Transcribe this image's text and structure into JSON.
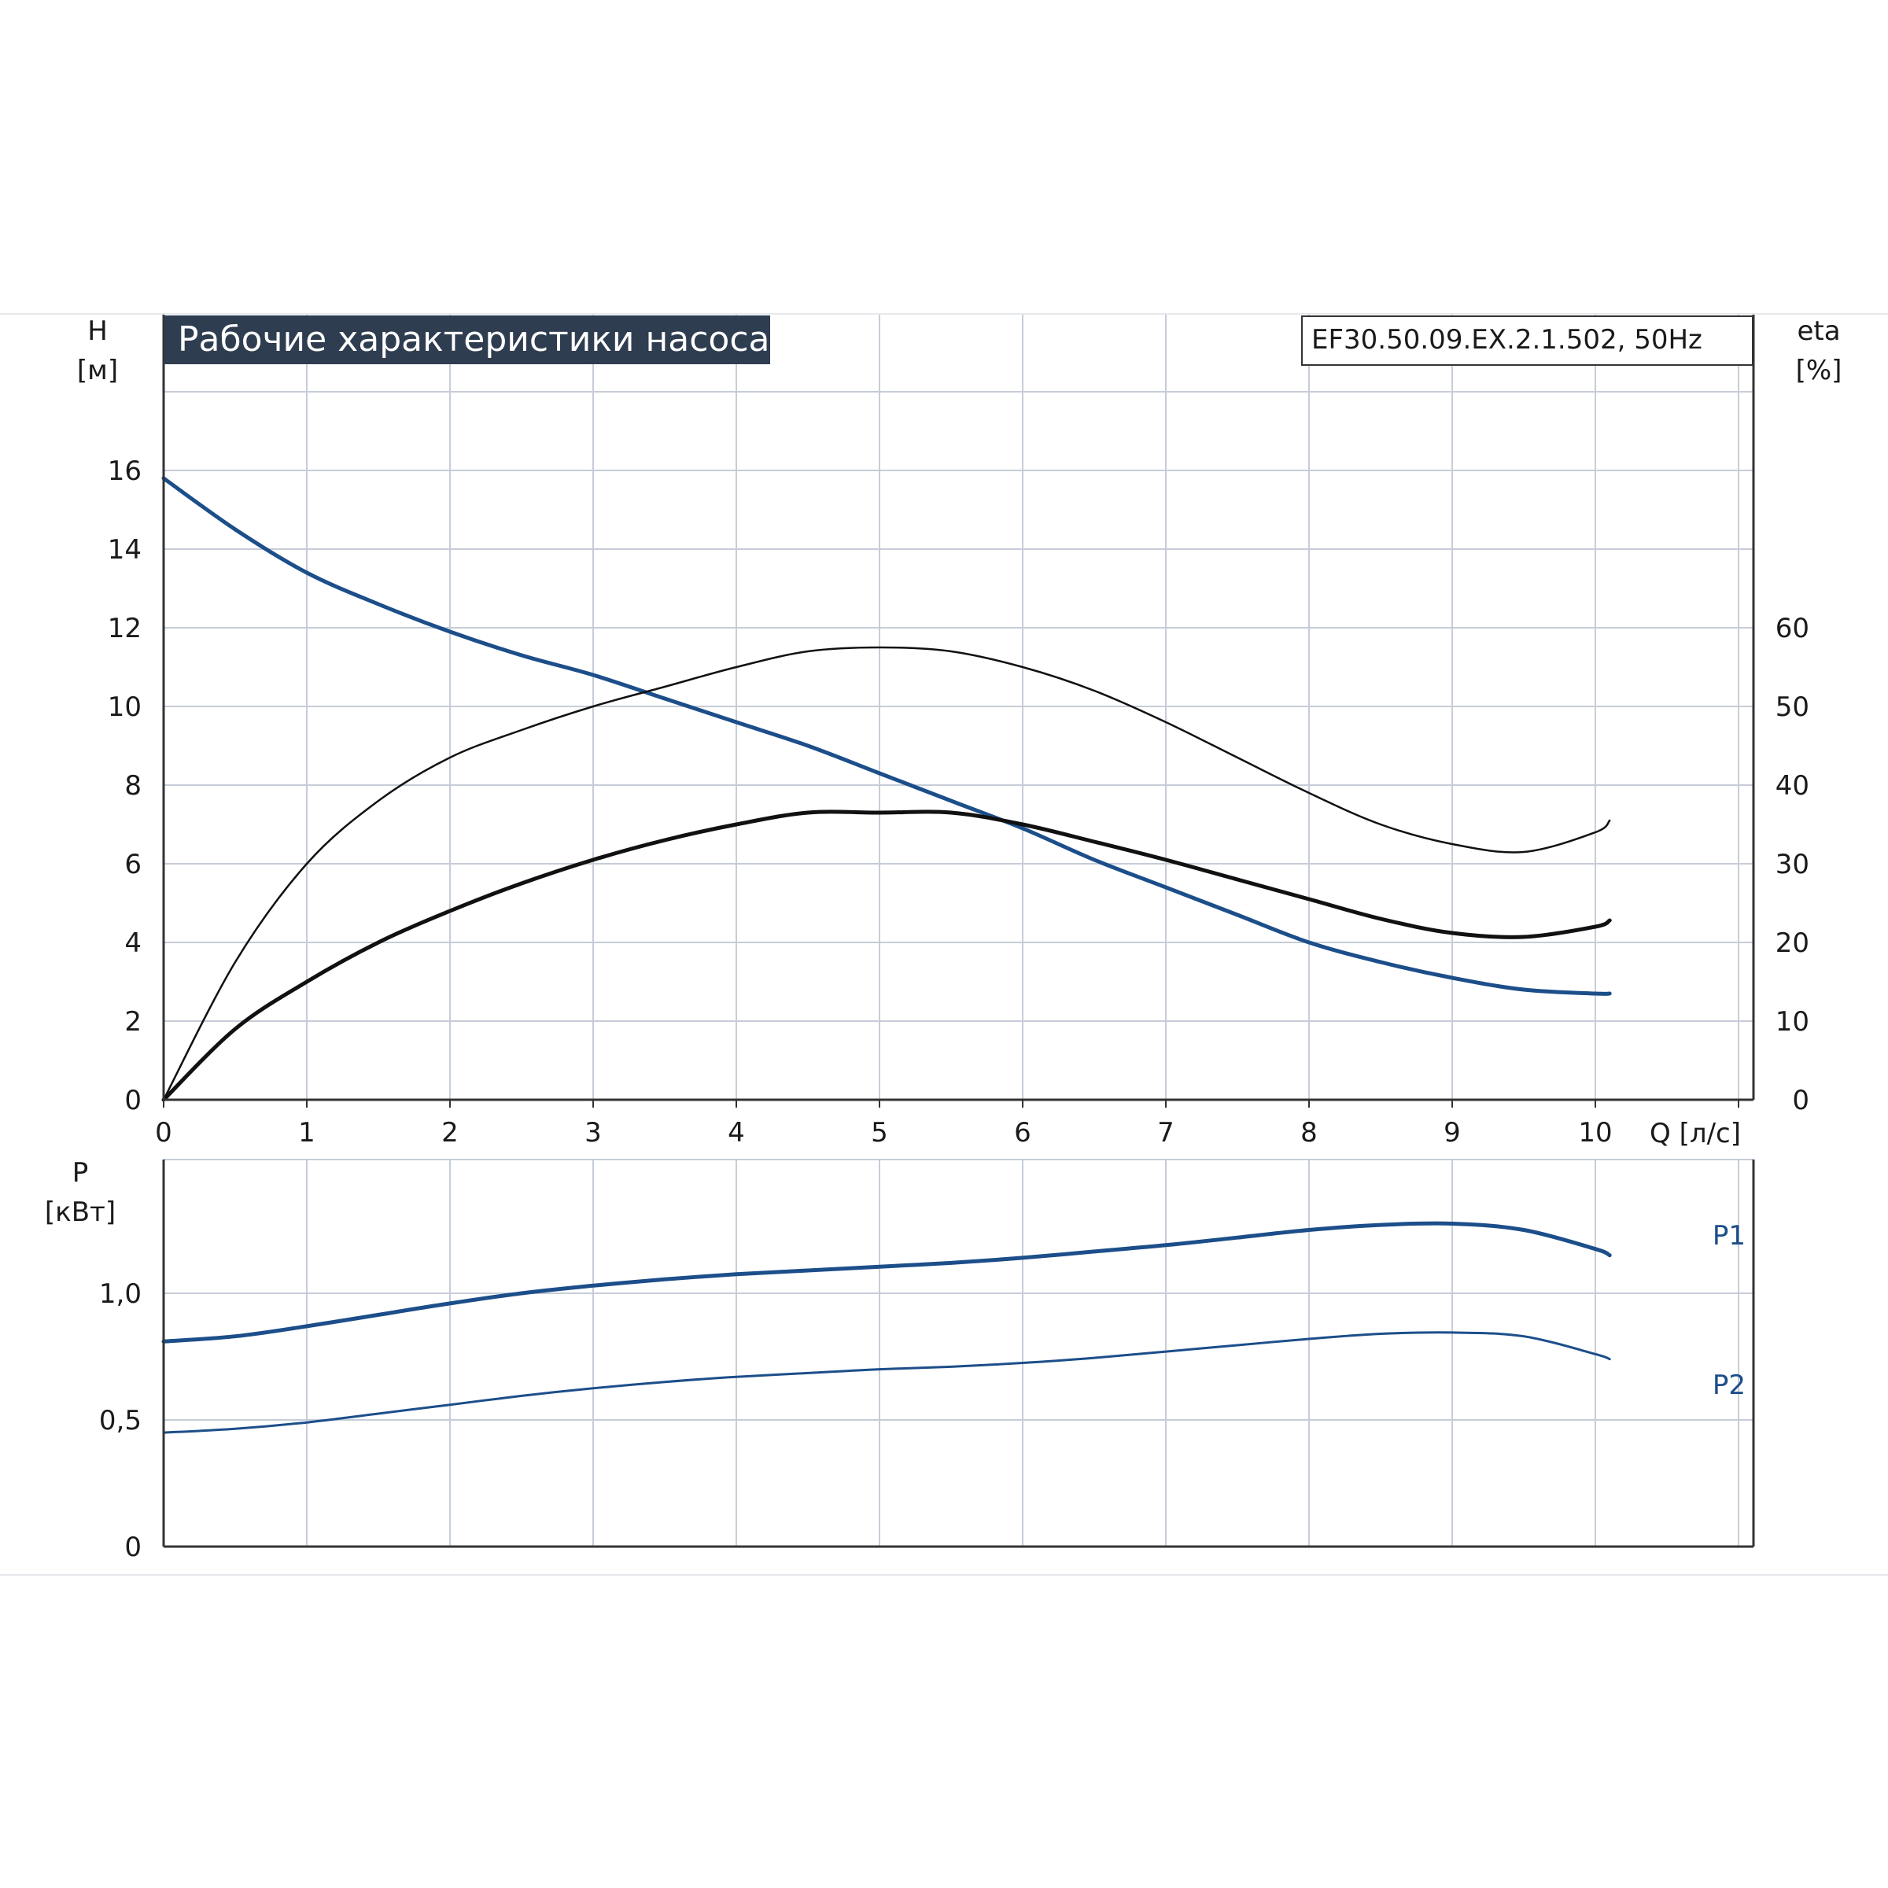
{
  "header": {
    "title": "Рабочие характеристики насоса",
    "model": "EF30.50.09.EX.2.1.502, 50Hz"
  },
  "colors": {
    "background": "#ffffff",
    "grid": "#c6cdd8",
    "axis": "#333333",
    "title_bg": "#2f3d50",
    "title_text": "#ffffff",
    "head_curve": "#1c4e8a",
    "power_curve": "#1c4e8a",
    "eta_curve": "#111111",
    "text": "#1a1a1a",
    "series_label": "#1c4e8a"
  },
  "chart_data": [
    {
      "id": "performance",
      "type": "line",
      "grid": true,
      "xlabel": "Q [л/с]",
      "ylabel": "H\n[м]",
      "y2label": "eta\n[%]",
      "xlim": [
        0,
        11
      ],
      "x_ticks": [
        "0",
        "1",
        "2",
        "3",
        "4",
        "5",
        "6",
        "7",
        "8",
        "9",
        "10"
      ],
      "ylim": [
        0,
        18
      ],
      "y_ticks": [
        "0",
        "2",
        "4",
        "6",
        "8",
        "10",
        "12",
        "14",
        "16"
      ],
      "y2lim": [
        0,
        90
      ],
      "y2_ticks": [
        "0",
        "10",
        "20",
        "30",
        "40",
        "50",
        "60"
      ],
      "series": [
        {
          "axis": "left",
          "style": "head",
          "x": [
            0,
            0.5,
            1,
            1.5,
            2,
            2.5,
            3,
            3.5,
            4,
            4.5,
            5,
            5.5,
            6,
            6.5,
            7,
            7.5,
            8,
            8.5,
            9,
            9.5,
            10,
            10.1
          ],
          "y": [
            15.8,
            14.5,
            13.4,
            12.6,
            11.9,
            11.3,
            10.8,
            10.2,
            9.6,
            9.0,
            8.3,
            7.6,
            6.9,
            6.1,
            5.4,
            4.7,
            4.0,
            3.5,
            3.1,
            2.8,
            2.7,
            2.7
          ]
        },
        {
          "axis": "right",
          "style": "eta_thin",
          "x": [
            0,
            0.5,
            1,
            1.5,
            2,
            2.5,
            3,
            3.5,
            4,
            4.5,
            5,
            5.5,
            6,
            6.5,
            7,
            7.5,
            8,
            8.5,
            9,
            9.5,
            10,
            10.1
          ],
          "y": [
            0,
            17.5,
            30,
            38,
            43.5,
            47,
            50,
            52.5,
            55,
            57,
            57.5,
            57,
            55,
            52,
            48,
            43.5,
            39,
            35,
            32.5,
            31.5,
            34,
            35.5
          ]
        },
        {
          "axis": "right",
          "style": "eta_thick",
          "x": [
            0,
            0.5,
            1,
            1.5,
            2,
            2.5,
            3,
            3.5,
            4,
            4.5,
            5,
            5.5,
            6,
            6.5,
            7,
            7.5,
            8,
            8.5,
            9,
            9.5,
            10,
            10.1
          ],
          "y": [
            0,
            9,
            15,
            20,
            24,
            27.5,
            30.5,
            33,
            35,
            36.5,
            36.5,
            36.5,
            35,
            32.8,
            30.5,
            28,
            25.5,
            23,
            21.2,
            20.7,
            22,
            22.8
          ]
        }
      ]
    },
    {
      "id": "power",
      "type": "line",
      "grid": true,
      "ylabel": "P\n[кВт]",
      "xlim": [
        0,
        11
      ],
      "ylim": [
        0,
        1.5
      ],
      "y_ticks": [
        "0",
        "0,5",
        "1,0"
      ],
      "series": [
        {
          "name": "P1",
          "style": "p1",
          "x": [
            0,
            0.5,
            1,
            1.5,
            2,
            2.5,
            3,
            3.5,
            4,
            4.5,
            5,
            5.5,
            6,
            6.5,
            7,
            7.5,
            8,
            8.5,
            9,
            9.5,
            10,
            10.1
          ],
          "y": [
            0.81,
            0.83,
            0.87,
            0.915,
            0.96,
            1.0,
            1.03,
            1.055,
            1.075,
            1.09,
            1.105,
            1.12,
            1.14,
            1.165,
            1.19,
            1.22,
            1.25,
            1.27,
            1.275,
            1.25,
            1.175,
            1.15
          ]
        },
        {
          "name": "P2",
          "style": "p2",
          "x": [
            0,
            0.5,
            1,
            1.5,
            2,
            2.5,
            3,
            3.5,
            4,
            4.5,
            5,
            5.5,
            6,
            6.5,
            7,
            7.5,
            8,
            8.5,
            9,
            9.5,
            10,
            10.1
          ],
          "y": [
            0.45,
            0.465,
            0.49,
            0.525,
            0.56,
            0.595,
            0.625,
            0.65,
            0.67,
            0.685,
            0.7,
            0.71,
            0.725,
            0.745,
            0.77,
            0.795,
            0.82,
            0.84,
            0.845,
            0.83,
            0.76,
            0.74
          ]
        }
      ]
    }
  ]
}
